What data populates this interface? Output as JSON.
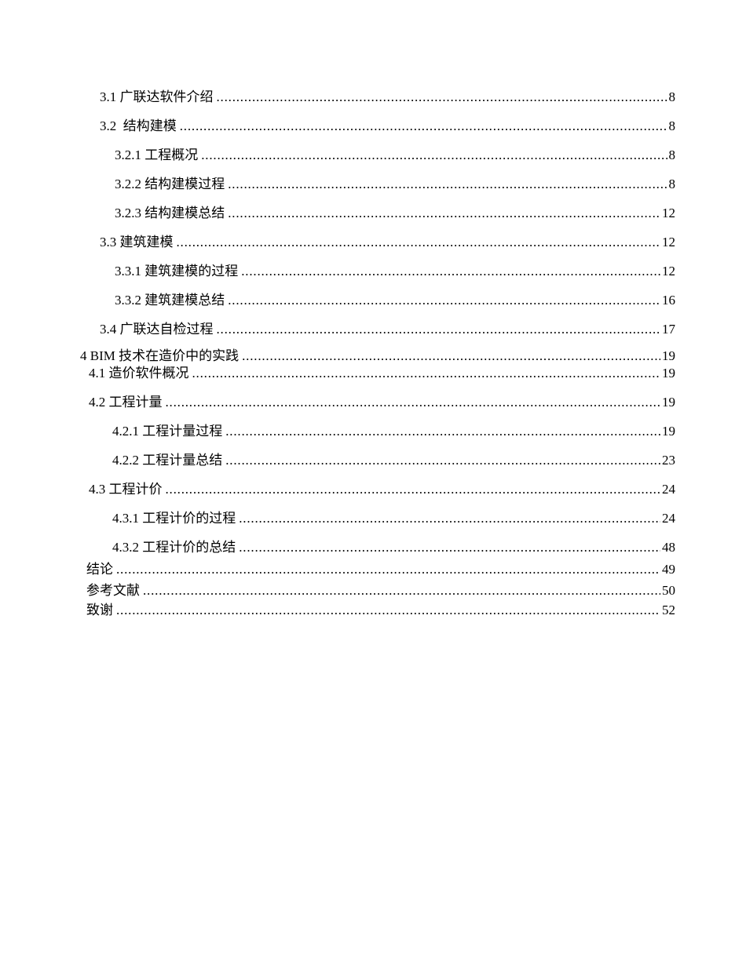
{
  "page": {
    "kind": "table-of-contents",
    "background_color": "#ffffff",
    "text_color": "#000000"
  },
  "toc": {
    "items": [
      {
        "text": "3.1 广联达软件介绍",
        "page": "8",
        "level": 2
      },
      {
        "text": "3.2  结构建模",
        "page": "8",
        "level": 2
      },
      {
        "text": "3.2.1 工程概况",
        "page": "8",
        "level": 3
      },
      {
        "text": "3.2.2 结构建模过程",
        "page": "8",
        "level": 3
      },
      {
        "text": "3.2.3 结构建模总结",
        "page": "12",
        "level": 3
      },
      {
        "text": "3.3 建筑建模",
        "page": "12",
        "level": 2
      },
      {
        "text": "3.3.1 建筑建模的过程",
        "page": "12",
        "level": 3
      },
      {
        "text": "3.3.2 建筑建模总结",
        "page": "16",
        "level": 3
      },
      {
        "text": "3.4 广联达自检过程",
        "page": "17",
        "level": 2
      },
      {
        "text": "4 BIM 技术在造价中的实践",
        "page": "19",
        "level": 1
      },
      {
        "text": "4.1 造价软件概况",
        "page": "19",
        "level": 2
      },
      {
        "text": "4.2 工程计量",
        "page": "19",
        "level": 2
      },
      {
        "text": "4.2.1 工程计量过程",
        "page": "19",
        "level": 3
      },
      {
        "text": "4.2.2 工程计量总结",
        "page": "23",
        "level": 3
      },
      {
        "text": "4.3 工程计价",
        "page": "24",
        "level": 2
      },
      {
        "text": "4.3.1 工程计价的过程",
        "page": "24",
        "level": 3
      },
      {
        "text": "4.3.2 工程计价的总结",
        "page": "48",
        "level": 3
      },
      {
        "text": "结论",
        "page": "49",
        "level": 1
      },
      {
        "text": "参考文献",
        "page": "50",
        "level": 1
      },
      {
        "text": "致谢",
        "page": "52",
        "level": 1
      }
    ]
  }
}
